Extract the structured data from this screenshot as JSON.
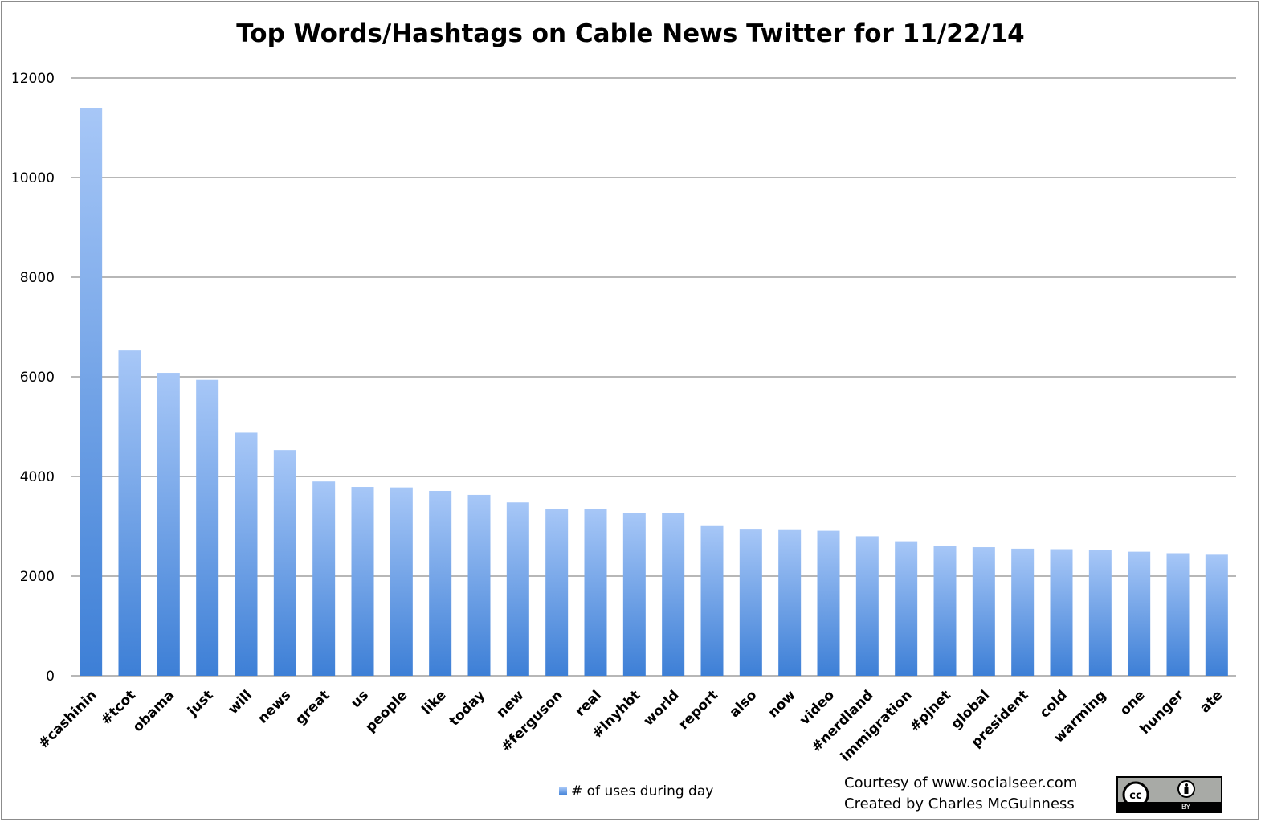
{
  "chart_data": {
    "type": "bar",
    "title": "Top Words/Hashtags on Cable News Twitter for 11/22/14",
    "xlabel": "",
    "ylabel": "",
    "ylim": [
      0,
      12000
    ],
    "yticks": [
      0,
      2000,
      4000,
      6000,
      8000,
      10000,
      12000
    ],
    "grid": true,
    "legend": "bottom-center",
    "categories": [
      "#cashinin",
      "#tcot",
      "obama",
      "just",
      "will",
      "news",
      "great",
      "us",
      "people",
      "like",
      "today",
      "new",
      "#ferguson",
      "real",
      "#lnyhbt",
      "world",
      "report",
      "also",
      "now",
      "video",
      "#nerdland",
      "immigration",
      "#pjnet",
      "global",
      "president",
      "cold",
      "warming",
      "one",
      "hunger",
      "ate"
    ],
    "series": [
      {
        "name": "# of uses during day",
        "values": [
          11390,
          6530,
          6080,
          5940,
          4880,
          4530,
          3900,
          3790,
          3780,
          3710,
          3630,
          3480,
          3350,
          3350,
          3270,
          3260,
          3020,
          2950,
          2940,
          2910,
          2800,
          2700,
          2610,
          2580,
          2550,
          2540,
          2520,
          2490,
          2460,
          2430
        ]
      }
    ],
    "colors": {
      "bar_top": "#a7c7f7",
      "bar_bottom": "#3d7fd6",
      "grid": "#8c8c8c"
    }
  },
  "credits": {
    "line1": "Courtesy of www.socialseer.com",
    "line2": "Created by Charles McGuinness"
  },
  "license_badge": {
    "text": "BY",
    "icon": "cc-by-icon"
  }
}
